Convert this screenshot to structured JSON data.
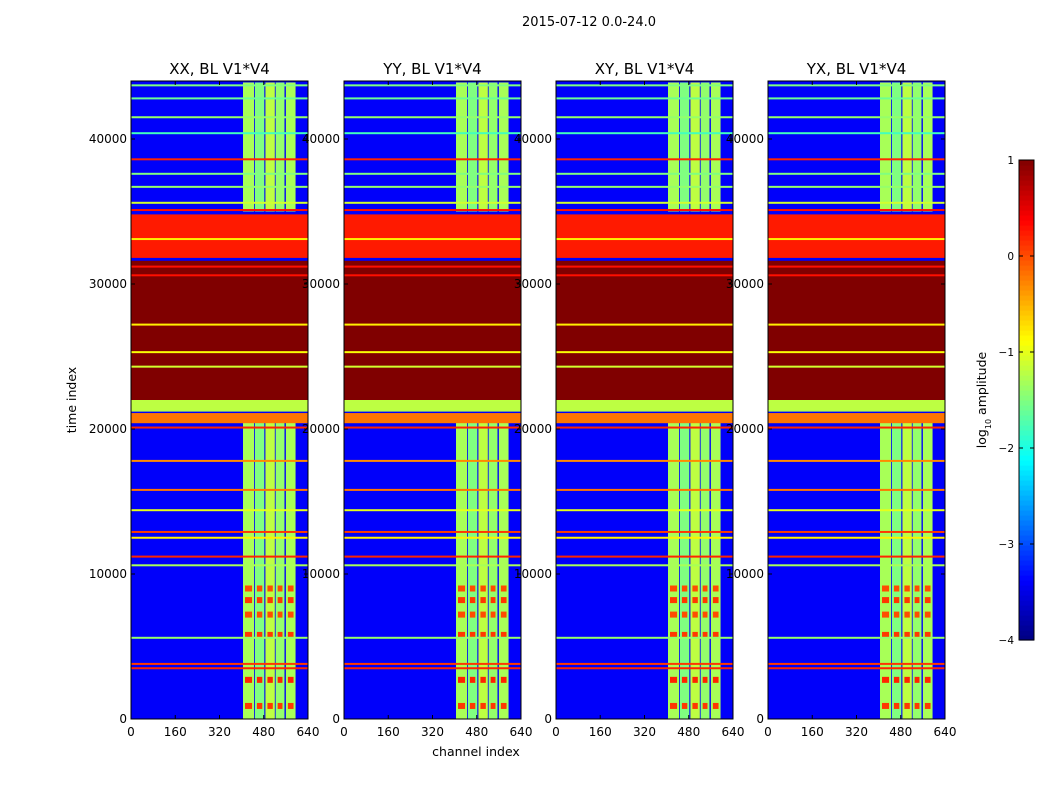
{
  "chart_data": {
    "type": "heatmap",
    "title": "2015-07-12 0.0-24.0",
    "xlabel": "channel index",
    "ylabel": "time index",
    "xlim": [
      0,
      640
    ],
    "ylim": [
      0,
      44000
    ],
    "xticks": [
      0,
      160,
      320,
      480,
      640
    ],
    "xtick_labels": [
      "0",
      "160",
      "320",
      "480",
      "640"
    ],
    "yticks": [
      0,
      10000,
      20000,
      30000,
      40000
    ],
    "ytick_labels": [
      "0",
      "10000",
      "20000",
      "30000",
      "40000"
    ],
    "ytick_labels_shared": [
      "0",
      "10000",
      "20000",
      "30000",
      "40000"
    ],
    "panels": [
      {
        "title": "XX, BL V1*V4"
      },
      {
        "title": "YY, BL V1*V4"
      },
      {
        "title": "XY, BL V1*V4"
      },
      {
        "title": "YX, BL V1*V4"
      }
    ],
    "colorbar": {
      "label_prefix": "log",
      "label_sub": "10",
      "label_suffix": " amplitude",
      "range": [
        -4,
        1
      ],
      "ticks": [
        -4,
        -3,
        -2,
        -1,
        0,
        1
      ],
      "tick_labels": [
        "−4",
        "−3",
        "−2",
        "−1",
        "0",
        "1"
      ],
      "colormap": "jet"
    },
    "background_level": -3.4,
    "rfi_channel_ranges": [
      {
        "from": 405,
        "to": 445,
        "level": -1.3
      },
      {
        "from": 448,
        "to": 482,
        "level": -1.5
      },
      {
        "from": 486,
        "to": 520,
        "level": -1.2
      },
      {
        "from": 523,
        "to": 555,
        "level": -1.4
      },
      {
        "from": 560,
        "to": 595,
        "level": -1.3
      }
    ],
    "rfi_bursts": [
      {
        "time": 9000,
        "level": 0.0
      },
      {
        "time": 8200,
        "level": 0.1
      },
      {
        "time": 7200,
        "level": 0.0
      },
      {
        "time": 5800,
        "level": 0.1
      },
      {
        "time": 2700,
        "level": 0.2
      },
      {
        "time": 900,
        "level": 0.1
      }
    ],
    "time_bands": [
      {
        "from": 34800,
        "to": 31800,
        "level": 0.25
      },
      {
        "from": 31600,
        "to": 22000,
        "level": 1.0
      },
      {
        "from": 22000,
        "to": 21200,
        "level": -1.2
      },
      {
        "from": 21100,
        "to": 20400,
        "level": -0.2
      }
    ],
    "horizontal_lines": [
      {
        "time": 43700,
        "level": -1.5
      },
      {
        "time": 42800,
        "level": -1.6
      },
      {
        "time": 41500,
        "level": -1.4
      },
      {
        "time": 40400,
        "level": -1.8
      },
      {
        "time": 38600,
        "level": 0.2
      },
      {
        "time": 37600,
        "level": -1.5
      },
      {
        "time": 36700,
        "level": -1.4
      },
      {
        "time": 35600,
        "level": -1.1
      },
      {
        "time": 35100,
        "level": 0.3
      },
      {
        "time": 33100,
        "level": -0.8
      },
      {
        "time": 31200,
        "level": 0.3
      },
      {
        "time": 30600,
        "level": 0.3
      },
      {
        "time": 27200,
        "level": -0.8
      },
      {
        "time": 25300,
        "level": -0.9
      },
      {
        "time": 24300,
        "level": -1.1
      },
      {
        "time": 20100,
        "level": 0.2
      },
      {
        "time": 17800,
        "level": -0.3
      },
      {
        "time": 15800,
        "level": -0.2
      },
      {
        "time": 14400,
        "level": -1.0
      },
      {
        "time": 12900,
        "level": 0.1
      },
      {
        "time": 12500,
        "level": -0.8
      },
      {
        "time": 11200,
        "level": 0.2
      },
      {
        "time": 10600,
        "level": -1.3
      },
      {
        "time": 5600,
        "level": -1.4
      },
      {
        "time": 3800,
        "level": 0.1
      },
      {
        "time": 3500,
        "level": 0.2
      }
    ]
  }
}
